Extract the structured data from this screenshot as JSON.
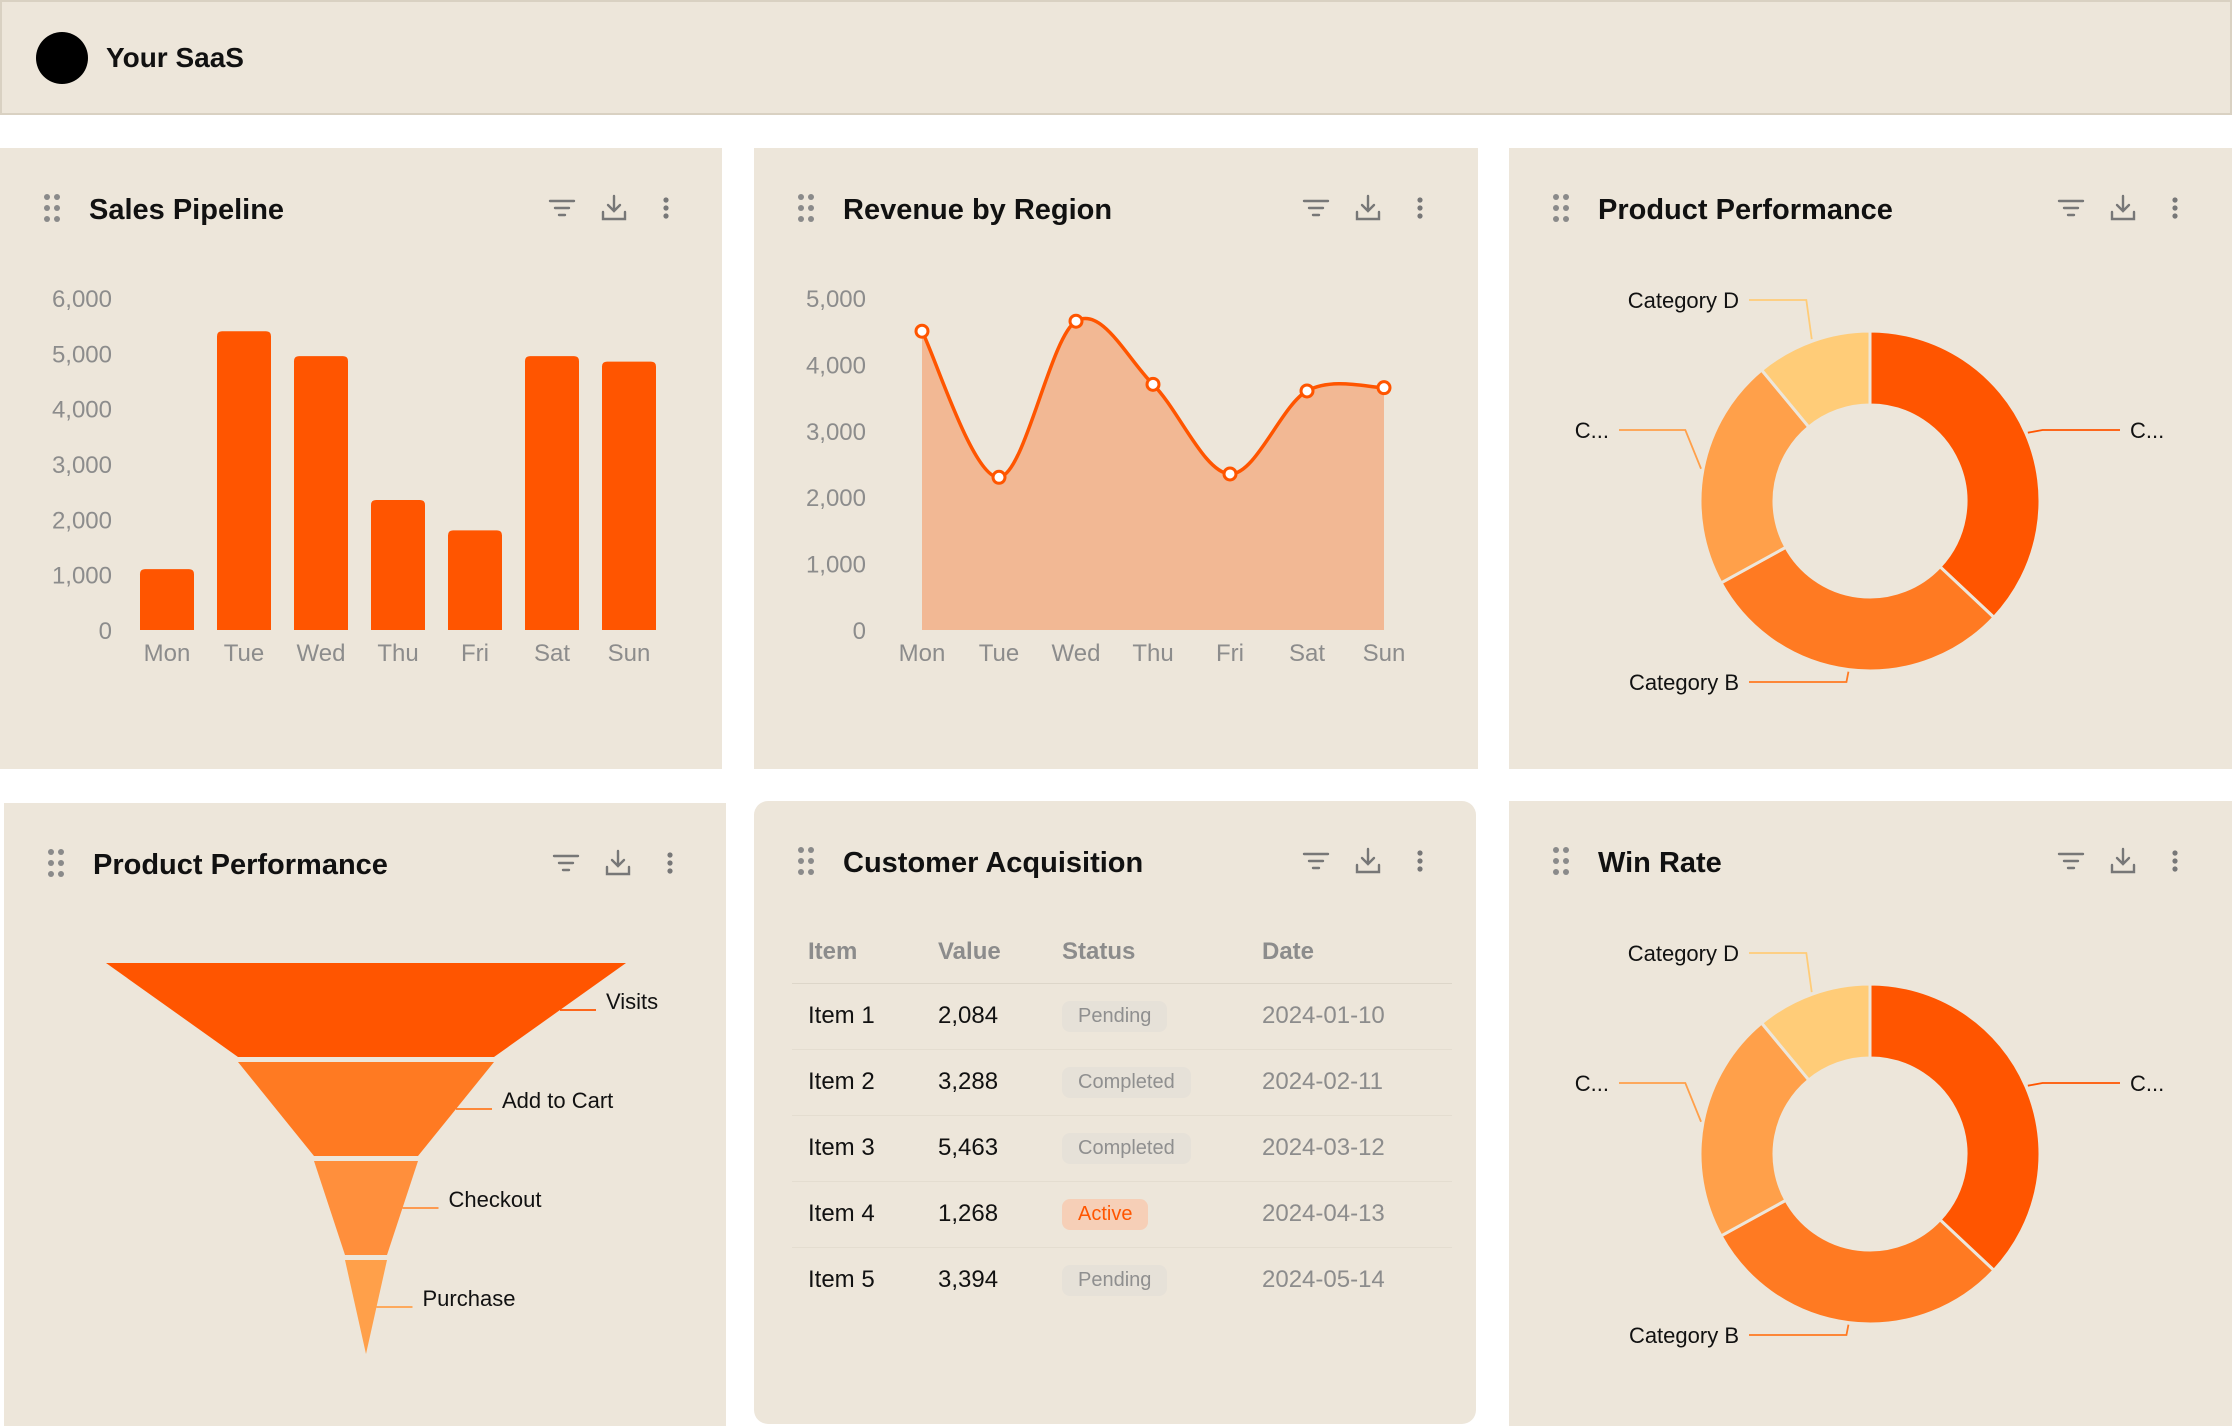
{
  "app": {
    "name": "Your SaaS"
  },
  "colors": {
    "accent": "#ff5500",
    "card_bg": "#ede6da",
    "area_fill": "#f2b894",
    "orange_2": "#ff7a22",
    "orange_3": "#ffa04a",
    "orange_4": "#ffcc78"
  },
  "cards": {
    "sales_pipeline": {
      "title": "Sales Pipeline"
    },
    "revenue_by_region": {
      "title": "Revenue by Region"
    },
    "product_performance_1": {
      "title": "Product Performance"
    },
    "product_performance_2": {
      "title": "Product Performance"
    },
    "customer_acquisition": {
      "title": "Customer Acquisition"
    },
    "win_rate": {
      "title": "Win Rate"
    }
  },
  "toolbar_icons": [
    "filter-icon",
    "download-icon",
    "more-vertical-icon"
  ],
  "chart_data": [
    {
      "id": "sales_pipeline",
      "type": "bar",
      "title": "Sales Pipeline",
      "categories": [
        "Mon",
        "Tue",
        "Wed",
        "Thu",
        "Fri",
        "Sat",
        "Sun"
      ],
      "values": [
        1100,
        5400,
        4950,
        2350,
        1800,
        4950,
        4850
      ],
      "ylim": [
        0,
        6000
      ],
      "yticks": [
        "0",
        "1,000",
        "2,000",
        "3,000",
        "4,000",
        "5,000",
        "6,000"
      ],
      "yticks_num": [
        0,
        1000,
        2000,
        3000,
        4000,
        5000,
        6000
      ],
      "grid": false
    },
    {
      "id": "revenue_by_region",
      "type": "area",
      "title": "Revenue by Region",
      "categories": [
        "Mon",
        "Tue",
        "Wed",
        "Thu",
        "Fri",
        "Sat",
        "Sun"
      ],
      "values": [
        4500,
        2300,
        4650,
        3700,
        2350,
        3600,
        3650
      ],
      "ylim": [
        0,
        5000
      ],
      "yticks": [
        "0",
        "1,000",
        "2,000",
        "3,000",
        "4,000",
        "5,000"
      ],
      "yticks_num": [
        0,
        1000,
        2000,
        3000,
        4000,
        5000
      ],
      "grid": false
    },
    {
      "id": "product_performance_donut",
      "type": "pie",
      "title": "Product Performance",
      "labels": [
        "C...",
        "Category B",
        "C...",
        "Category D"
      ],
      "values": [
        37,
        30,
        22,
        11
      ],
      "colors": [
        "#ff5500",
        "#ff7a22",
        "#ffa04a",
        "#ffcc78"
      ]
    },
    {
      "id": "product_performance_funnel",
      "type": "bar",
      "title": "Product Performance",
      "categories": [
        "Visits",
        "Add to Cart",
        "Checkout",
        "Purchase"
      ],
      "values": [
        100,
        50,
        20,
        8
      ],
      "colors": [
        "#ff5500",
        "#ff7a22",
        "#ff8f3c",
        "#ffa04a"
      ]
    },
    {
      "id": "win_rate",
      "type": "pie",
      "title": "Win Rate",
      "labels": [
        "C...",
        "Category B",
        "C...",
        "Category D"
      ],
      "values": [
        37,
        30,
        22,
        11
      ],
      "colors": [
        "#ff5500",
        "#ff7a22",
        "#ffa04a",
        "#ffcc78"
      ]
    },
    {
      "id": "customer_acquisition",
      "type": "table",
      "title": "Customer Acquisition",
      "columns": [
        "Item",
        "Value",
        "Status",
        "Date"
      ],
      "rows": [
        {
          "item": "Item 1",
          "value": "2,084",
          "status": "Pending",
          "date": "2024-01-10"
        },
        {
          "item": "Item 2",
          "value": "3,288",
          "status": "Completed",
          "date": "2024-02-11"
        },
        {
          "item": "Item 3",
          "value": "5,463",
          "status": "Completed",
          "date": "2024-03-12"
        },
        {
          "item": "Item 4",
          "value": "1,268",
          "status": "Active",
          "date": "2024-04-13"
        },
        {
          "item": "Item 5",
          "value": "3,394",
          "status": "Pending",
          "date": "2024-05-14"
        }
      ]
    }
  ]
}
